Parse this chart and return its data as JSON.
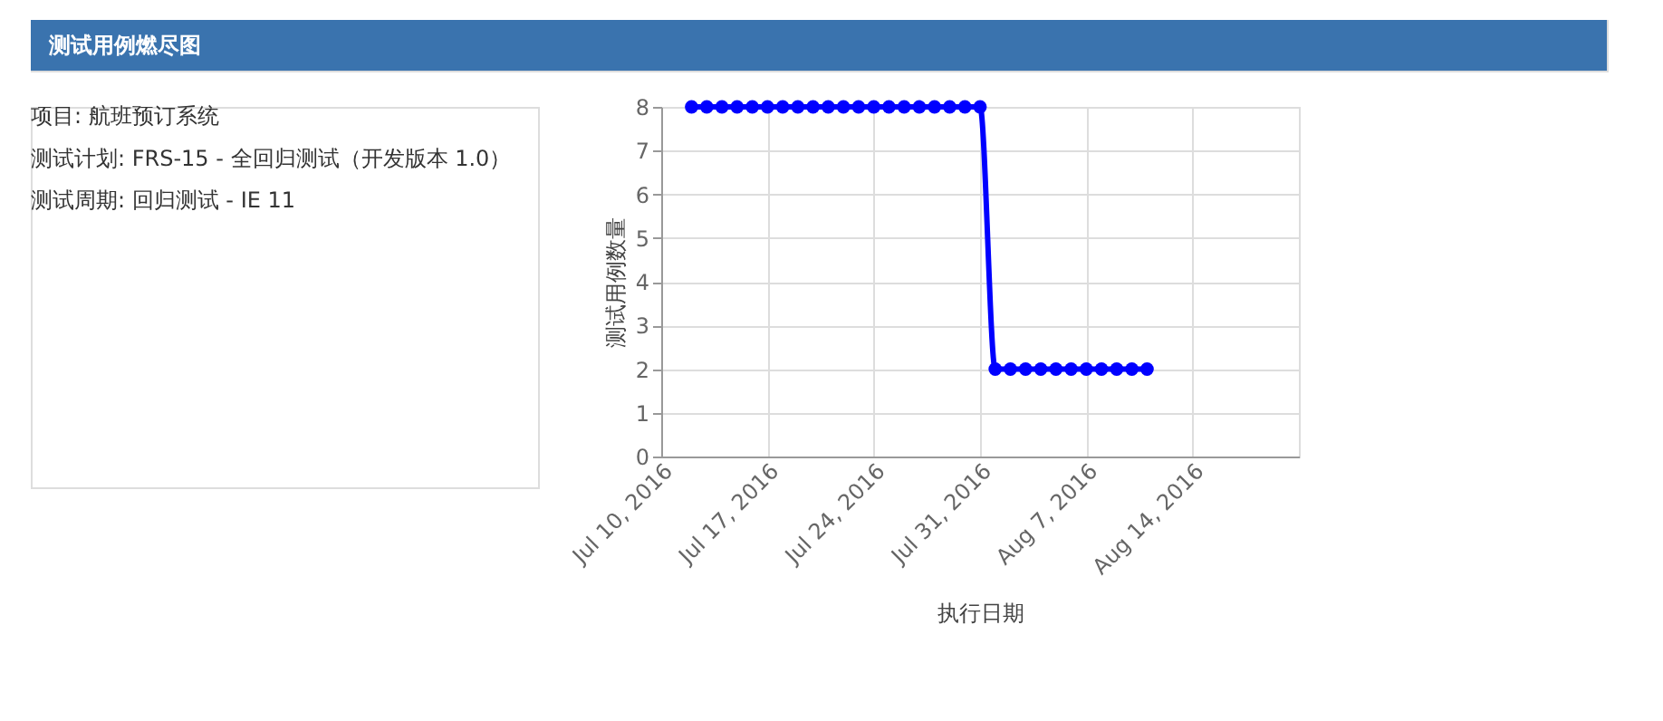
{
  "chart_data": {
    "type": "line",
    "title": "测试用例燃尽图",
    "annotations": [
      "项目: 航班预订系统",
      "测试计划: FRS-15 - 全回归测试（开发版本 1.0）",
      "测试周期: 回归测试 - IE 11"
    ],
    "xlabel": "执行日期",
    "ylabel": "测试用例数量",
    "x": [
      "2016-07-12",
      "2016-07-13",
      "2016-07-14",
      "2016-07-15",
      "2016-07-16",
      "2016-07-17",
      "2016-07-18",
      "2016-07-19",
      "2016-07-20",
      "2016-07-21",
      "2016-07-22",
      "2016-07-23",
      "2016-07-24",
      "2016-07-25",
      "2016-07-26",
      "2016-07-27",
      "2016-07-28",
      "2016-07-29",
      "2016-07-30",
      "2016-07-31",
      "2016-08-01",
      "2016-08-02",
      "2016-08-03",
      "2016-08-04",
      "2016-08-05",
      "2016-08-06",
      "2016-08-07",
      "2016-08-08",
      "2016-08-09",
      "2016-08-10",
      "2016-08-11"
    ],
    "series": [
      {
        "color": "#0000ff",
        "values": [
          8,
          8,
          8,
          8,
          8,
          8,
          8,
          8,
          8,
          8,
          8,
          8,
          8,
          8,
          8,
          8,
          8,
          8,
          8,
          8,
          2,
          2,
          2,
          2,
          2,
          2,
          2,
          2,
          2,
          2,
          2
        ]
      }
    ],
    "xlim": [
      "2016-07-10",
      "2016-08-21"
    ],
    "xticks": [
      {
        "value": "2016-07-10",
        "label": "Jul 10, 2016"
      },
      {
        "value": "2016-07-17",
        "label": "Jul 17, 2016"
      },
      {
        "value": "2016-07-24",
        "label": "Jul 24, 2016"
      },
      {
        "value": "2016-07-31",
        "label": "Jul 31, 2016"
      },
      {
        "value": "2016-08-07",
        "label": "Aug 7, 2016"
      },
      {
        "value": "2016-08-14",
        "label": "Aug 14, 2016"
      }
    ],
    "ylim": [
      0,
      8
    ],
    "yticks": [
      0,
      1,
      2,
      3,
      4,
      5,
      6,
      7,
      8
    ],
    "grid": true,
    "marker": "circle",
    "line_style": "solid"
  }
}
